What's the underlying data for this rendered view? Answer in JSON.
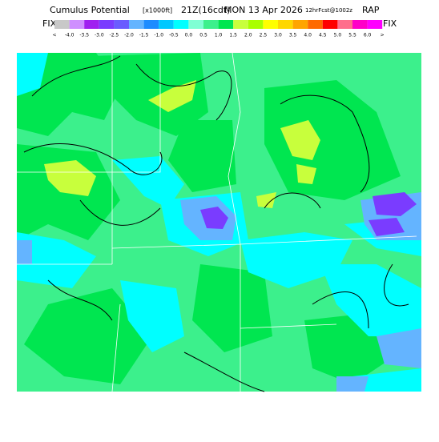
{
  "header": {
    "title": "Cumulus Potential",
    "units": "[x1000ft]",
    "valid": "21Z(16cdt)",
    "date": "MON 13 Apr 2026",
    "forecast": "12hrFcst@1002z",
    "model": "RAP"
  },
  "legend": {
    "left_label": "FIX",
    "right_label": "FIX",
    "ticks": [
      "<",
      "-4.0",
      "-3.5",
      "-3.0",
      "-2.5",
      "-2.0",
      "-1.5",
      "-1.0",
      "-0.5",
      "0.0",
      "0.5",
      "1.0",
      "1.5",
      "2.0",
      "2.5",
      "3.0",
      "3.5",
      "4.0",
      "4.5",
      "5.0",
      "5.5",
      "6.0",
      ">"
    ],
    "colors": [
      "#c8c8c8",
      "#cf8fff",
      "#a020f0",
      "#7a3cff",
      "#6a5cff",
      "#64b4ff",
      "#1e8cff",
      "#00c8ff",
      "#00ffff",
      "#7fffd4",
      "#3cf08c",
      "#00e650",
      "#c8ff3c",
      "#aaff00",
      "#ffff00",
      "#ffd700",
      "#ffa500",
      "#ff6a00",
      "#ff0000",
      "#ff6e8c",
      "#ff00c8",
      "#ff00ff"
    ]
  }
}
